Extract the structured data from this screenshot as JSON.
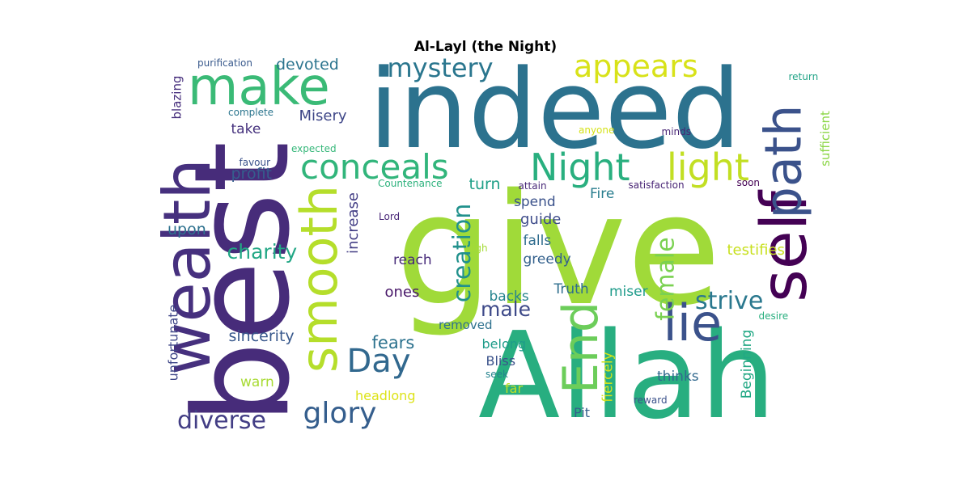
{
  "title": "Al-Layl (the Night)",
  "words": [
    {
      "text": "give",
      "color": "#a0da39",
      "orientation": "horizontal"
    },
    {
      "text": "indeed",
      "color": "#2c728e",
      "orientation": "horizontal"
    },
    {
      "text": "Allah",
      "color": "#28ae80",
      "orientation": "horizontal"
    },
    {
      "text": "best",
      "color": "#472c7a",
      "orientation": "vertical"
    },
    {
      "text": "wealth",
      "color": "#46307e",
      "orientation": "vertical"
    },
    {
      "text": "self",
      "color": "#440154",
      "orientation": "vertical"
    },
    {
      "text": "path",
      "color": "#3b528b",
      "orientation": "vertical"
    },
    {
      "text": "make",
      "color": "#3aba76",
      "orientation": "horizontal"
    },
    {
      "text": "smooth",
      "color": "#b5de2b",
      "orientation": "vertical"
    },
    {
      "text": "End",
      "color": "#6ccd5a",
      "orientation": "vertical"
    },
    {
      "text": "lie",
      "color": "#3b528b",
      "orientation": "horizontal"
    },
    {
      "text": "appears",
      "color": "#d8e219",
      "orientation": "horizontal"
    },
    {
      "text": "Night",
      "color": "#29af7f",
      "orientation": "horizontal"
    },
    {
      "text": "light",
      "color": "#c2df23",
      "orientation": "horizontal"
    },
    {
      "text": "conceals",
      "color": "#31b57b",
      "orientation": "horizontal"
    },
    {
      "text": "mystery",
      "color": "#2a768e",
      "orientation": "horizontal"
    },
    {
      "text": "Day",
      "color": "#31688e",
      "orientation": "horizontal"
    },
    {
      "text": "glory",
      "color": "#355e8d",
      "orientation": "horizontal"
    },
    {
      "text": "diverse",
      "color": "#433e85",
      "orientation": "horizontal"
    },
    {
      "text": "creation",
      "color": "#21918c",
      "orientation": "vertical"
    },
    {
      "text": "female",
      "color": "#7ad151",
      "orientation": "vertical"
    },
    {
      "text": "male",
      "color": "#3e4a89",
      "orientation": "horizontal"
    },
    {
      "text": "strive",
      "color": "#2a788e",
      "orientation": "horizontal"
    },
    {
      "text": "charity",
      "color": "#22a785",
      "orientation": "horizontal"
    },
    {
      "text": "sincerity",
      "color": "#38588c",
      "orientation": "horizontal"
    },
    {
      "text": "fears",
      "color": "#2c728e",
      "orientation": "horizontal"
    },
    {
      "text": "devoted",
      "color": "#2b748e",
      "orientation": "horizontal"
    },
    {
      "text": "Misery",
      "color": "#3f4788",
      "orientation": "horizontal"
    },
    {
      "text": "take",
      "color": "#46327e",
      "orientation": "horizontal"
    },
    {
      "text": "profit",
      "color": "#355e8d",
      "orientation": "horizontal"
    },
    {
      "text": "upon",
      "color": "#2d718e",
      "orientation": "horizontal"
    },
    {
      "text": "increase",
      "color": "#433e85",
      "orientation": "vertical"
    },
    {
      "text": "turn",
      "color": "#1fa088",
      "orientation": "horizontal"
    },
    {
      "text": "spend",
      "color": "#3b528b",
      "orientation": "horizontal"
    },
    {
      "text": "Fire",
      "color": "#287d8e",
      "orientation": "horizontal"
    },
    {
      "text": "guide",
      "color": "#3e4c8a",
      "orientation": "horizontal"
    },
    {
      "text": "falls",
      "color": "#2f6c8e",
      "orientation": "horizontal"
    },
    {
      "text": "greedy",
      "color": "#34618d",
      "orientation": "horizontal"
    },
    {
      "text": "reach",
      "color": "#472a7a",
      "orientation": "horizontal"
    },
    {
      "text": "ones",
      "color": "#481769",
      "orientation": "horizontal"
    },
    {
      "text": "backs",
      "color": "#25848e",
      "orientation": "horizontal"
    },
    {
      "text": "Truth",
      "color": "#2e6e8e",
      "orientation": "horizontal"
    },
    {
      "text": "miser",
      "color": "#1e9b8a",
      "orientation": "horizontal"
    },
    {
      "text": "testifies",
      "color": "#c8e020",
      "orientation": "horizontal"
    },
    {
      "text": "removed",
      "color": "#2d708e",
      "orientation": "horizontal"
    },
    {
      "text": "belong",
      "color": "#1e9c89",
      "orientation": "horizontal"
    },
    {
      "text": "Bliss",
      "color": "#3b528b",
      "orientation": "horizontal"
    },
    {
      "text": "thinks",
      "color": "#31688e",
      "orientation": "horizontal"
    },
    {
      "text": "warn",
      "color": "#a8db34",
      "orientation": "horizontal"
    },
    {
      "text": "headlong",
      "color": "#dde318",
      "orientation": "horizontal"
    },
    {
      "text": "far",
      "color": "#c0df25",
      "orientation": "horizontal"
    },
    {
      "text": "Pit",
      "color": "#355e8d",
      "orientation": "horizontal"
    },
    {
      "text": "fiercely",
      "color": "#d2e21b",
      "orientation": "vertical"
    },
    {
      "text": "Beginning",
      "color": "#22a884",
      "orientation": "vertical"
    },
    {
      "text": "unfortunate",
      "color": "#3f4788",
      "orientation": "vertical"
    },
    {
      "text": "blazing",
      "color": "#472f7d",
      "orientation": "vertical"
    },
    {
      "text": "sufficient",
      "color": "#8bd646",
      "orientation": "vertical"
    },
    {
      "text": "purification",
      "color": "#38598c",
      "orientation": "horizontal"
    },
    {
      "text": "complete",
      "color": "#2b758e",
      "orientation": "horizontal"
    },
    {
      "text": "expected",
      "color": "#35b779",
      "orientation": "horizontal"
    },
    {
      "text": "favour",
      "color": "#3b528b",
      "orientation": "horizontal"
    },
    {
      "text": "Countenance",
      "color": "#2db27d",
      "orientation": "horizontal"
    },
    {
      "text": "Lord",
      "color": "#482677",
      "orientation": "horizontal"
    },
    {
      "text": "High",
      "color": "#a5db36",
      "orientation": "horizontal"
    },
    {
      "text": "attain",
      "color": "#482878",
      "orientation": "horizontal"
    },
    {
      "text": "satisfaction",
      "color": "#482475",
      "orientation": "horizontal"
    },
    {
      "text": "soon",
      "color": "#440154",
      "orientation": "horizontal"
    },
    {
      "text": "return",
      "color": "#20a386",
      "orientation": "horizontal"
    },
    {
      "text": "anyone",
      "color": "#d5e21a",
      "orientation": "horizontal"
    },
    {
      "text": "minds",
      "color": "#482475",
      "orientation": "horizontal"
    },
    {
      "text": "seek",
      "color": "#25838e",
      "orientation": "horizontal"
    },
    {
      "text": "desire",
      "color": "#29af7f",
      "orientation": "horizontal"
    },
    {
      "text": "reward",
      "color": "#3b528b",
      "orientation": "horizontal"
    }
  ]
}
